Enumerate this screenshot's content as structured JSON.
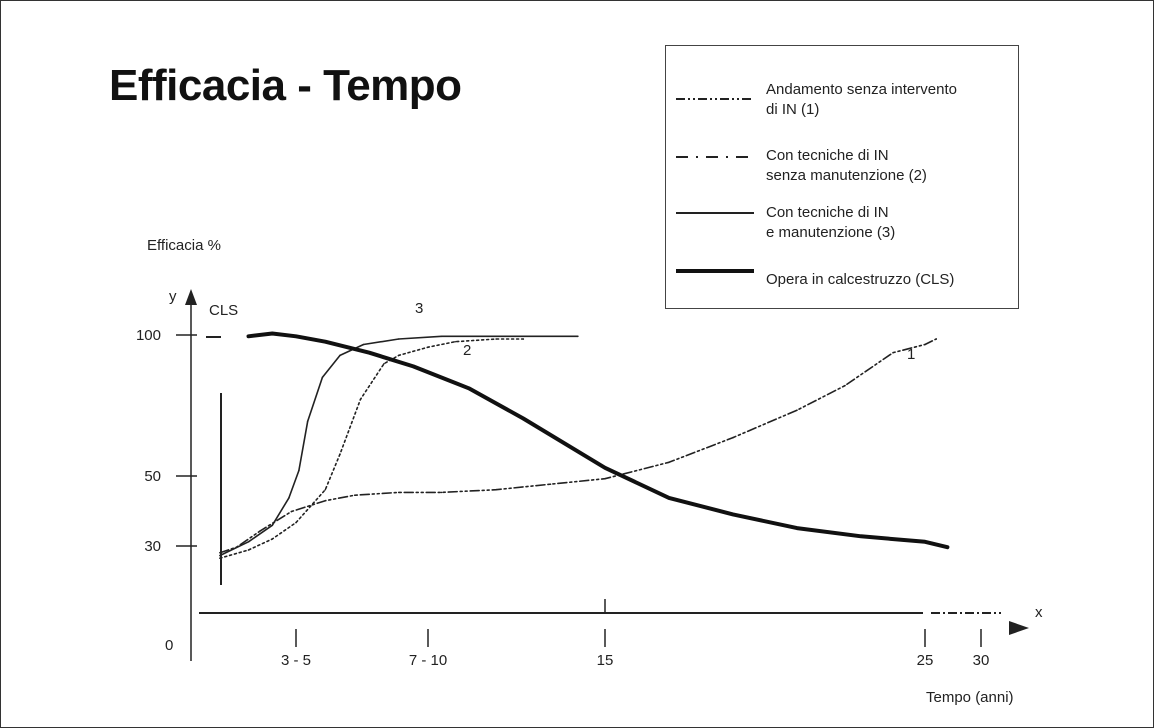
{
  "slide": {
    "title": "Efficacia - Tempo",
    "ylabel_top": "Efficacia %",
    "y_axis_letter": "y",
    "x_axis_letter": "x",
    "cls_axis_label": "CLS",
    "xlabel": "Tempo (anni)",
    "origin_label": "0"
  },
  "legend": {
    "items": [
      {
        "line1": "Andamento senza intervento",
        "line2": "di IN (1)",
        "style": "dash-dot-dot"
      },
      {
        "line1": "Con tecniche di IN",
        "line2": "senza manutenzione (2)",
        "style": "dash-dot"
      },
      {
        "line1": "Con tecniche di IN",
        "line2": "e manutenzione (3)",
        "style": "solid-thin"
      },
      {
        "line1": "Opera in calcestruzzo (CLS)",
        "line2": "",
        "style": "solid-thick"
      }
    ]
  },
  "chart_data": {
    "type": "line",
    "title": "Efficacia - Tempo",
    "xlabel": "Tempo (anni)",
    "ylabel": "Efficacia %",
    "x_ticks": [
      "3 - 5",
      "7 - 10",
      "15",
      "25",
      "30"
    ],
    "y_ticks": [
      "100",
      "50",
      "30"
    ],
    "curve_labels": [
      "1",
      "2",
      "3"
    ],
    "series": [
      {
        "name": "Andamento senza intervento di IN (1)",
        "label": "1",
        "color": "#222222",
        "x": [
          0.8,
          1.5,
          2.5,
          3.8,
          5,
          6,
          7.5,
          9,
          11,
          13,
          15,
          17,
          19,
          21,
          22.5,
          24,
          25,
          26
        ],
        "y": [
          22,
          24,
          30,
          37,
          41,
          43,
          44,
          44,
          45,
          47,
          49,
          55,
          64,
          74,
          83,
          95,
          98,
          100
        ]
      },
      {
        "name": "Con tecniche di IN senza manutenzione (2)",
        "label": "2",
        "color": "#222222",
        "x": [
          0.8,
          2,
          3,
          4,
          5,
          5.5,
          6.2,
          7,
          7.5,
          8.5,
          9.5,
          11,
          12
        ],
        "y": [
          20,
          23,
          27,
          33,
          45,
          58,
          78,
          91,
          94,
          97,
          99,
          100,
          100
        ]
      },
      {
        "name": "Con tecniche di IN e manutenzione (3)",
        "label": "3",
        "color": "#222222",
        "x": [
          0.8,
          2,
          3,
          3.7,
          4.1,
          4.4,
          4.9,
          5.5,
          6.3,
          7.5,
          9,
          11,
          14
        ],
        "y": [
          21,
          26,
          32,
          42,
          52,
          70,
          86,
          94,
          98,
          100,
          101,
          101,
          101
        ]
      },
      {
        "name": "Opera in calcestruzzo (CLS)",
        "color": "#111111",
        "x": [
          2,
          3,
          4,
          5,
          6.5,
          8,
          10,
          12,
          15,
          17,
          19,
          21,
          23,
          25,
          27
        ],
        "y": [
          101,
          102,
          101,
          99,
          95,
          90,
          82,
          71,
          53,
          42,
          36,
          31,
          28,
          26,
          24
        ]
      }
    ]
  }
}
